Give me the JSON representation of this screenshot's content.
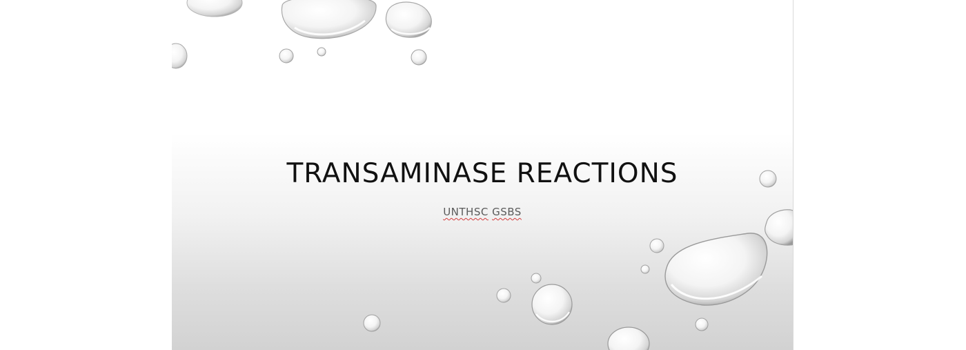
{
  "slide": {
    "title": "TRANSAMINASE REACTIONS",
    "subtitle_word_1": "UNTHSC",
    "subtitle_word_2": "GSBS"
  },
  "colors": {
    "title_text": "#111111",
    "subtitle_text": "#5a5a5a",
    "spellcheck_underline": "#d23b3b"
  }
}
